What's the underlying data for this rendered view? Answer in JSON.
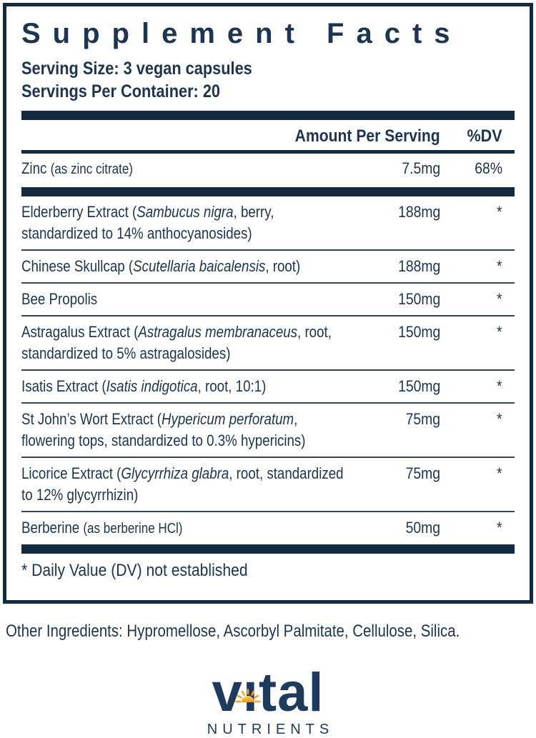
{
  "panel": {
    "title": "Supplement Facts",
    "serving_size": "Serving Size: 3 vegan capsules",
    "servings_per_container": "Servings Per Container: 20",
    "header": {
      "amount": "Amount Per Serving",
      "dv": "%DV"
    },
    "main_rows": [
      {
        "segments": [
          {
            "t": "Zinc "
          },
          {
            "t": "(as zinc citrate)",
            "small": true
          }
        ],
        "amount": "7.5mg",
        "dv": "68%"
      }
    ],
    "botanical_rows": [
      {
        "segments": [
          {
            "t": "Elderberry Extract ("
          },
          {
            "t": "Sambucus nigra",
            "i": true
          },
          {
            "t": ", berry, standardized to 14% anthocyanosides)"
          }
        ],
        "amount": "188mg",
        "dv": "*"
      },
      {
        "segments": [
          {
            "t": "Chinese Skullcap ("
          },
          {
            "t": "Scutellaria baicalensis",
            "i": true
          },
          {
            "t": ", root)"
          }
        ],
        "amount": "188mg",
        "dv": "*"
      },
      {
        "segments": [
          {
            "t": "Bee Propolis"
          }
        ],
        "amount": "150mg",
        "dv": "*"
      },
      {
        "segments": [
          {
            "t": "Astragalus Extract ("
          },
          {
            "t": "Astragalus membranaceus",
            "i": true
          },
          {
            "t": ", root, standardized to 5% astragalosides)"
          }
        ],
        "amount": "150mg",
        "dv": "*"
      },
      {
        "segments": [
          {
            "t": "Isatis Extract ("
          },
          {
            "t": "Isatis indigotica",
            "i": true
          },
          {
            "t": ", root, 10:1)"
          }
        ],
        "amount": "150mg",
        "dv": "*"
      },
      {
        "segments": [
          {
            "t": "St John’s Wort Extract ("
          },
          {
            "t": "Hypericum perforatum",
            "i": true
          },
          {
            "t": ", flowering tops, standardized to 0.3% hypericins)"
          }
        ],
        "amount": "75mg",
        "dv": "*"
      },
      {
        "segments": [
          {
            "t": "Licorice Extract ("
          },
          {
            "t": "Glycyrrhiza glabra",
            "i": true
          },
          {
            "t": ", root, standardized to 12% glycyrrhizin)"
          }
        ],
        "amount": "75mg",
        "dv": "*"
      },
      {
        "segments": [
          {
            "t": "Berberine "
          },
          {
            "t": "(as berberine HCl)",
            "small": true
          }
        ],
        "amount": "50mg",
        "dv": "*"
      }
    ],
    "footnote": "* Daily Value (DV) not established"
  },
  "other_ingredients": "Other Ingredients: Hypromellose, Ascorbyl Palmitate, Cellulose, Silica.",
  "brand": {
    "wordmark": "vıtal",
    "subname": "NUTRIENTS",
    "icon": "sun-icon"
  },
  "colors": {
    "ink": "#1c3550",
    "rule_heavy": "#132b40",
    "rule_thin": "#31465b",
    "logo_navy": "#1e3a5c",
    "sun_orange": "#f5a21d",
    "sun_light": "#ffd34d"
  }
}
